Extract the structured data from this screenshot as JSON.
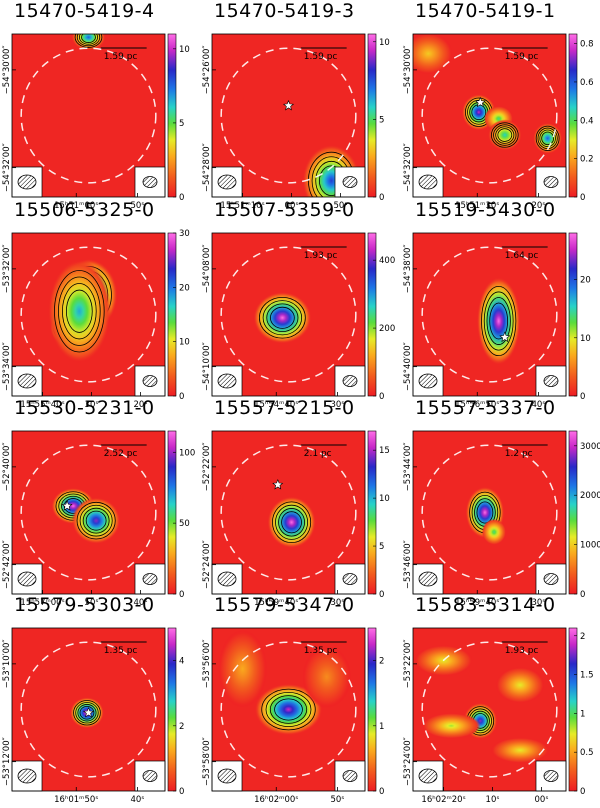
{
  "figure": {
    "panels": [
      {
        "title": "15470-5419-4",
        "scale": "1.59 pc",
        "xticks": [
          "15ʰ51ᵐ00ˢ",
          "50ˢ"
        ],
        "yticks": [
          "−54°30′00″",
          "−54°32′00″"
        ],
        "cbar_ticks": [
          "10",
          "5",
          "0"
        ],
        "cbar_max": 11,
        "star": null,
        "blobs": [
          {
            "cx": 0.5,
            "cy": 0.02,
            "rx": 0.07,
            "ry": 0.05,
            "v": 0.7
          }
        ]
      },
      {
        "title": "15470-5419-3",
        "scale": "1.59 pc",
        "xticks": [
          "15ʰ51ᵐ10ˢ",
          "00ˢ",
          "50ˢ"
        ],
        "yticks": [
          "−54°26′00″",
          "−54°28′00″"
        ],
        "cbar_ticks": [
          "10",
          "5",
          "0"
        ],
        "cbar_max": 10.5,
        "star": {
          "x": 0.5,
          "y": 0.44
        },
        "blobs": [
          {
            "cx": 0.78,
            "cy": 0.9,
            "rx": 0.12,
            "ry": 0.14,
            "v": 0.75
          }
        ]
      },
      {
        "title": "15470-5419-1",
        "scale": "1.59 pc",
        "xticks": [
          "15ʰ51ᵐ30ˢ",
          "20ˢ"
        ],
        "yticks": [
          "−54°30′00″",
          "−54°32′00″"
        ],
        "cbar_ticks": [
          "0.8",
          "0.6",
          "0.4",
          "0.2",
          "0"
        ],
        "cbar_max": 0.85,
        "star": {
          "x": 0.44,
          "y": 0.42
        },
        "blobs": [
          {
            "cx": 0.43,
            "cy": 0.48,
            "rx": 0.07,
            "ry": 0.07,
            "v": 0.9
          },
          {
            "cx": 0.56,
            "cy": 0.52,
            "rx": 0.06,
            "ry": 0.05,
            "v": 0.5
          },
          {
            "cx": 0.6,
            "cy": 0.62,
            "rx": 0.07,
            "ry": 0.06,
            "v": 0.55
          },
          {
            "cx": 0.88,
            "cy": 0.64,
            "rx": 0.06,
            "ry": 0.06,
            "v": 0.7
          },
          {
            "cx": 0.1,
            "cy": 0.12,
            "rx": 0.1,
            "ry": 0.08,
            "v": 0.3
          }
        ]
      },
      {
        "title": "15506-5325-0",
        "scale": "",
        "xticks": [
          "15ʰ55ᵐ40ˢ",
          "30ˢ",
          "20ˢ"
        ],
        "yticks": [
          "−53°32′00″",
          "−53°34′00″"
        ],
        "cbar_ticks": [
          "30",
          "20",
          "10",
          "0"
        ],
        "cbar_max": 30,
        "star": null,
        "blobs": [
          {
            "cx": 0.5,
            "cy": 0.38,
            "rx": 0.12,
            "ry": 0.14,
            "v": 1.0
          },
          {
            "cx": 0.36,
            "cy": 0.58,
            "rx": 0.07,
            "ry": 0.07,
            "v": 0.85
          },
          {
            "cx": 0.44,
            "cy": 0.48,
            "rx": 0.13,
            "ry": 0.2,
            "v": 0.6
          }
        ]
      },
      {
        "title": "15507-5359-0",
        "scale": "1.93 pc",
        "xticks": [
          "15ʰ54ᵐ40ˢ",
          "30ˢ"
        ],
        "yticks": [
          "−54°08′00″",
          "−54°10′00″"
        ],
        "cbar_ticks": [
          "400",
          "200",
          "0"
        ],
        "cbar_max": 480,
        "star": null,
        "blobs": [
          {
            "cx": 0.46,
            "cy": 0.52,
            "rx": 0.12,
            "ry": 0.1,
            "v": 1.0
          }
        ]
      },
      {
        "title": "15519-5430-0",
        "scale": "1.64 pc",
        "xticks": [
          "15ʰ56ᵐ50ˢ",
          "40ˢ"
        ],
        "yticks": [
          "−54°38′00″",
          "−54°40′00″"
        ],
        "cbar_ticks": [
          "20",
          "10",
          "0"
        ],
        "cbar_max": 28,
        "star": {
          "x": 0.6,
          "y": 0.64
        },
        "blobs": [
          {
            "cx": 0.56,
            "cy": 0.54,
            "rx": 0.09,
            "ry": 0.17,
            "v": 1.0
          }
        ]
      },
      {
        "title": "15530-5231-0",
        "scale": "2.52 pc",
        "xticks": [
          "15ʰ57ᵐ00ˢ",
          "50ˢ",
          "40ˢ"
        ],
        "yticks": [
          "−52°40′00″",
          "−52°42′00″"
        ],
        "cbar_ticks": [
          "100",
          "50",
          "0"
        ],
        "cbar_max": 115,
        "star": {
          "x": 0.36,
          "y": 0.46
        },
        "blobs": [
          {
            "cx": 0.4,
            "cy": 0.46,
            "rx": 0.09,
            "ry": 0.07,
            "v": 1.0
          },
          {
            "cx": 0.55,
            "cy": 0.55,
            "rx": 0.1,
            "ry": 0.09,
            "v": 0.85
          }
        ]
      },
      {
        "title": "15557-5215-0",
        "scale": "2.1 pc",
        "xticks": [
          "15ʰ59ᵐ40ˢ",
          "30ˢ"
        ],
        "yticks": [
          "−52°22′00″",
          "−52°24′00″"
        ],
        "cbar_ticks": [
          "15",
          "10",
          "5",
          "0"
        ],
        "cbar_max": 17,
        "star": {
          "x": 0.43,
          "y": 0.33
        },
        "blobs": [
          {
            "cx": 0.52,
            "cy": 0.56,
            "rx": 0.1,
            "ry": 0.1,
            "v": 1.0
          }
        ]
      },
      {
        "title": "15557-5337-0",
        "scale": "1.2 pc",
        "xticks": [
          "15ʰ59ᵐ40ˢ",
          "30ˢ"
        ],
        "yticks": [
          "−53°44′00″",
          "−53°46′00″"
        ],
        "cbar_ticks": [
          "3000",
          "2000",
          "1000",
          "0"
        ],
        "cbar_max": 3300,
        "star": null,
        "blobs": [
          {
            "cx": 0.47,
            "cy": 0.5,
            "rx": 0.08,
            "ry": 0.1,
            "v": 1.0
          },
          {
            "cx": 0.53,
            "cy": 0.62,
            "rx": 0.05,
            "ry": 0.05,
            "v": 0.5
          }
        ]
      },
      {
        "title": "15579-5303-0",
        "scale": "1.35 pc",
        "xticks": [
          "16ʰ01ᵐ50ˢ",
          "40ˢ"
        ],
        "yticks": [
          "−53°10′00″",
          "−53°12′00″"
        ],
        "cbar_ticks": [
          "4",
          "2",
          "0"
        ],
        "cbar_max": 5,
        "star": {
          "x": 0.5,
          "y": 0.52
        },
        "blobs": [
          {
            "cx": 0.49,
            "cy": 0.52,
            "rx": 0.07,
            "ry": 0.06,
            "v": 1.0
          }
        ]
      },
      {
        "title": "15579-5347-0",
        "scale": "1.35 pc",
        "xticks": [
          "16ʰ02ᵐ00ˢ",
          "50ˢ"
        ],
        "yticks": [
          "−53°56′00″",
          "−53°58′00″"
        ],
        "cbar_ticks": [
          "2",
          "1",
          "0"
        ],
        "cbar_max": 2.5,
        "star": null,
        "blobs": [
          {
            "cx": 0.5,
            "cy": 0.5,
            "rx": 0.14,
            "ry": 0.1,
            "v": 0.9
          },
          {
            "cx": 0.2,
            "cy": 0.25,
            "rx": 0.1,
            "ry": 0.15,
            "v": 0.25
          },
          {
            "cx": 0.75,
            "cy": 0.3,
            "rx": 0.1,
            "ry": 0.12,
            "v": 0.2
          }
        ]
      },
      {
        "title": "15583-5314-0",
        "scale": "1.93 pc",
        "xticks": [
          "16ʰ02ᵐ20ˢ",
          "10ˢ",
          "00ˢ"
        ],
        "yticks": [
          "−53°22′00″",
          "−53°24′00″"
        ],
        "cbar_ticks": [
          "2",
          "1.5",
          "1",
          "0.5",
          "0"
        ],
        "cbar_max": 2.1,
        "star": null,
        "blobs": [
          {
            "cx": 0.44,
            "cy": 0.57,
            "rx": 0.07,
            "ry": 0.07,
            "v": 0.85
          },
          {
            "cx": 0.2,
            "cy": 0.2,
            "rx": 0.12,
            "ry": 0.06,
            "v": 0.35
          },
          {
            "cx": 0.7,
            "cy": 0.35,
            "rx": 0.1,
            "ry": 0.07,
            "v": 0.35
          },
          {
            "cx": 0.25,
            "cy": 0.6,
            "rx": 0.12,
            "ry": 0.05,
            "v": 0.4
          },
          {
            "cx": 0.7,
            "cy": 0.75,
            "rx": 0.12,
            "ry": 0.05,
            "v": 0.35
          }
        ]
      }
    ]
  }
}
